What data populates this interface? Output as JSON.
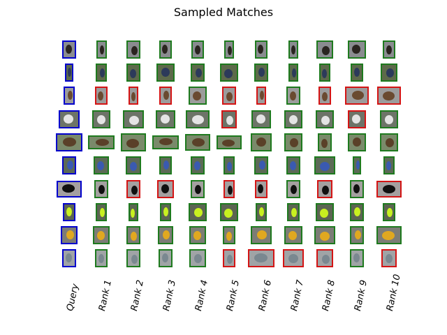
{
  "figure": {
    "title": "Sampled Matches",
    "columns": [
      "Query",
      "Rank 1",
      "Rank 2",
      "Rank 3",
      "Rank 4",
      "Rank 5",
      "Rank 6",
      "Rank 7",
      "Rank 8",
      "Rank 9",
      "Rank 10"
    ]
  },
  "colors": {
    "query_border": "#0000cc",
    "correct_border": "#1e7a1e",
    "incorrect_border": "#d41414"
  },
  "legend_semantics": {
    "Q": "query image (blue border)",
    "G": "correct match (green border)",
    "R": "incorrect match (red border)"
  },
  "rows": [
    {
      "theme": "dark-animal-on-grey",
      "borders": [
        "Q",
        "G",
        "G",
        "G",
        "G",
        "G",
        "G",
        "G",
        "G",
        "G",
        "G"
      ]
    },
    {
      "theme": "bird-on-foliage",
      "borders": [
        "Q",
        "G",
        "G",
        "G",
        "G",
        "G",
        "G",
        "G",
        "G",
        "G",
        "G"
      ]
    },
    {
      "theme": "brown-animal-on-grey",
      "borders": [
        "Q",
        "R",
        "R",
        "R",
        "G",
        "R",
        "R",
        "G",
        "R",
        "R",
        "R"
      ]
    },
    {
      "theme": "striped-animal",
      "borders": [
        "Q",
        "G",
        "G",
        "G",
        "G",
        "R",
        "G",
        "G",
        "G",
        "R",
        "G"
      ]
    },
    {
      "theme": "owl-on-branch",
      "borders": [
        "Q",
        "G",
        "G",
        "G",
        "G",
        "G",
        "G",
        "G",
        "G",
        "G",
        "G"
      ]
    },
    {
      "theme": "blue-bird",
      "borders": [
        "Q",
        "G",
        "G",
        "G",
        "G",
        "G",
        "G",
        "G",
        "G",
        "G",
        "G"
      ]
    },
    {
      "theme": "black-figure-on-grey",
      "borders": [
        "Q",
        "G",
        "R",
        "R",
        "G",
        "R",
        "R",
        "G",
        "R",
        "G",
        "R"
      ]
    },
    {
      "theme": "yellow-green-object",
      "borders": [
        "Q",
        "G",
        "G",
        "G",
        "G",
        "G",
        "G",
        "G",
        "G",
        "G",
        "G"
      ]
    },
    {
      "theme": "yellow-black-bird",
      "borders": [
        "Q",
        "G",
        "G",
        "G",
        "G",
        "G",
        "G",
        "G",
        "G",
        "G",
        "G"
      ]
    },
    {
      "theme": "small-grey-object",
      "borders": [
        "Q",
        "G",
        "G",
        "G",
        "G",
        "R",
        "R",
        "R",
        "R",
        "G",
        "R"
      ]
    }
  ]
}
